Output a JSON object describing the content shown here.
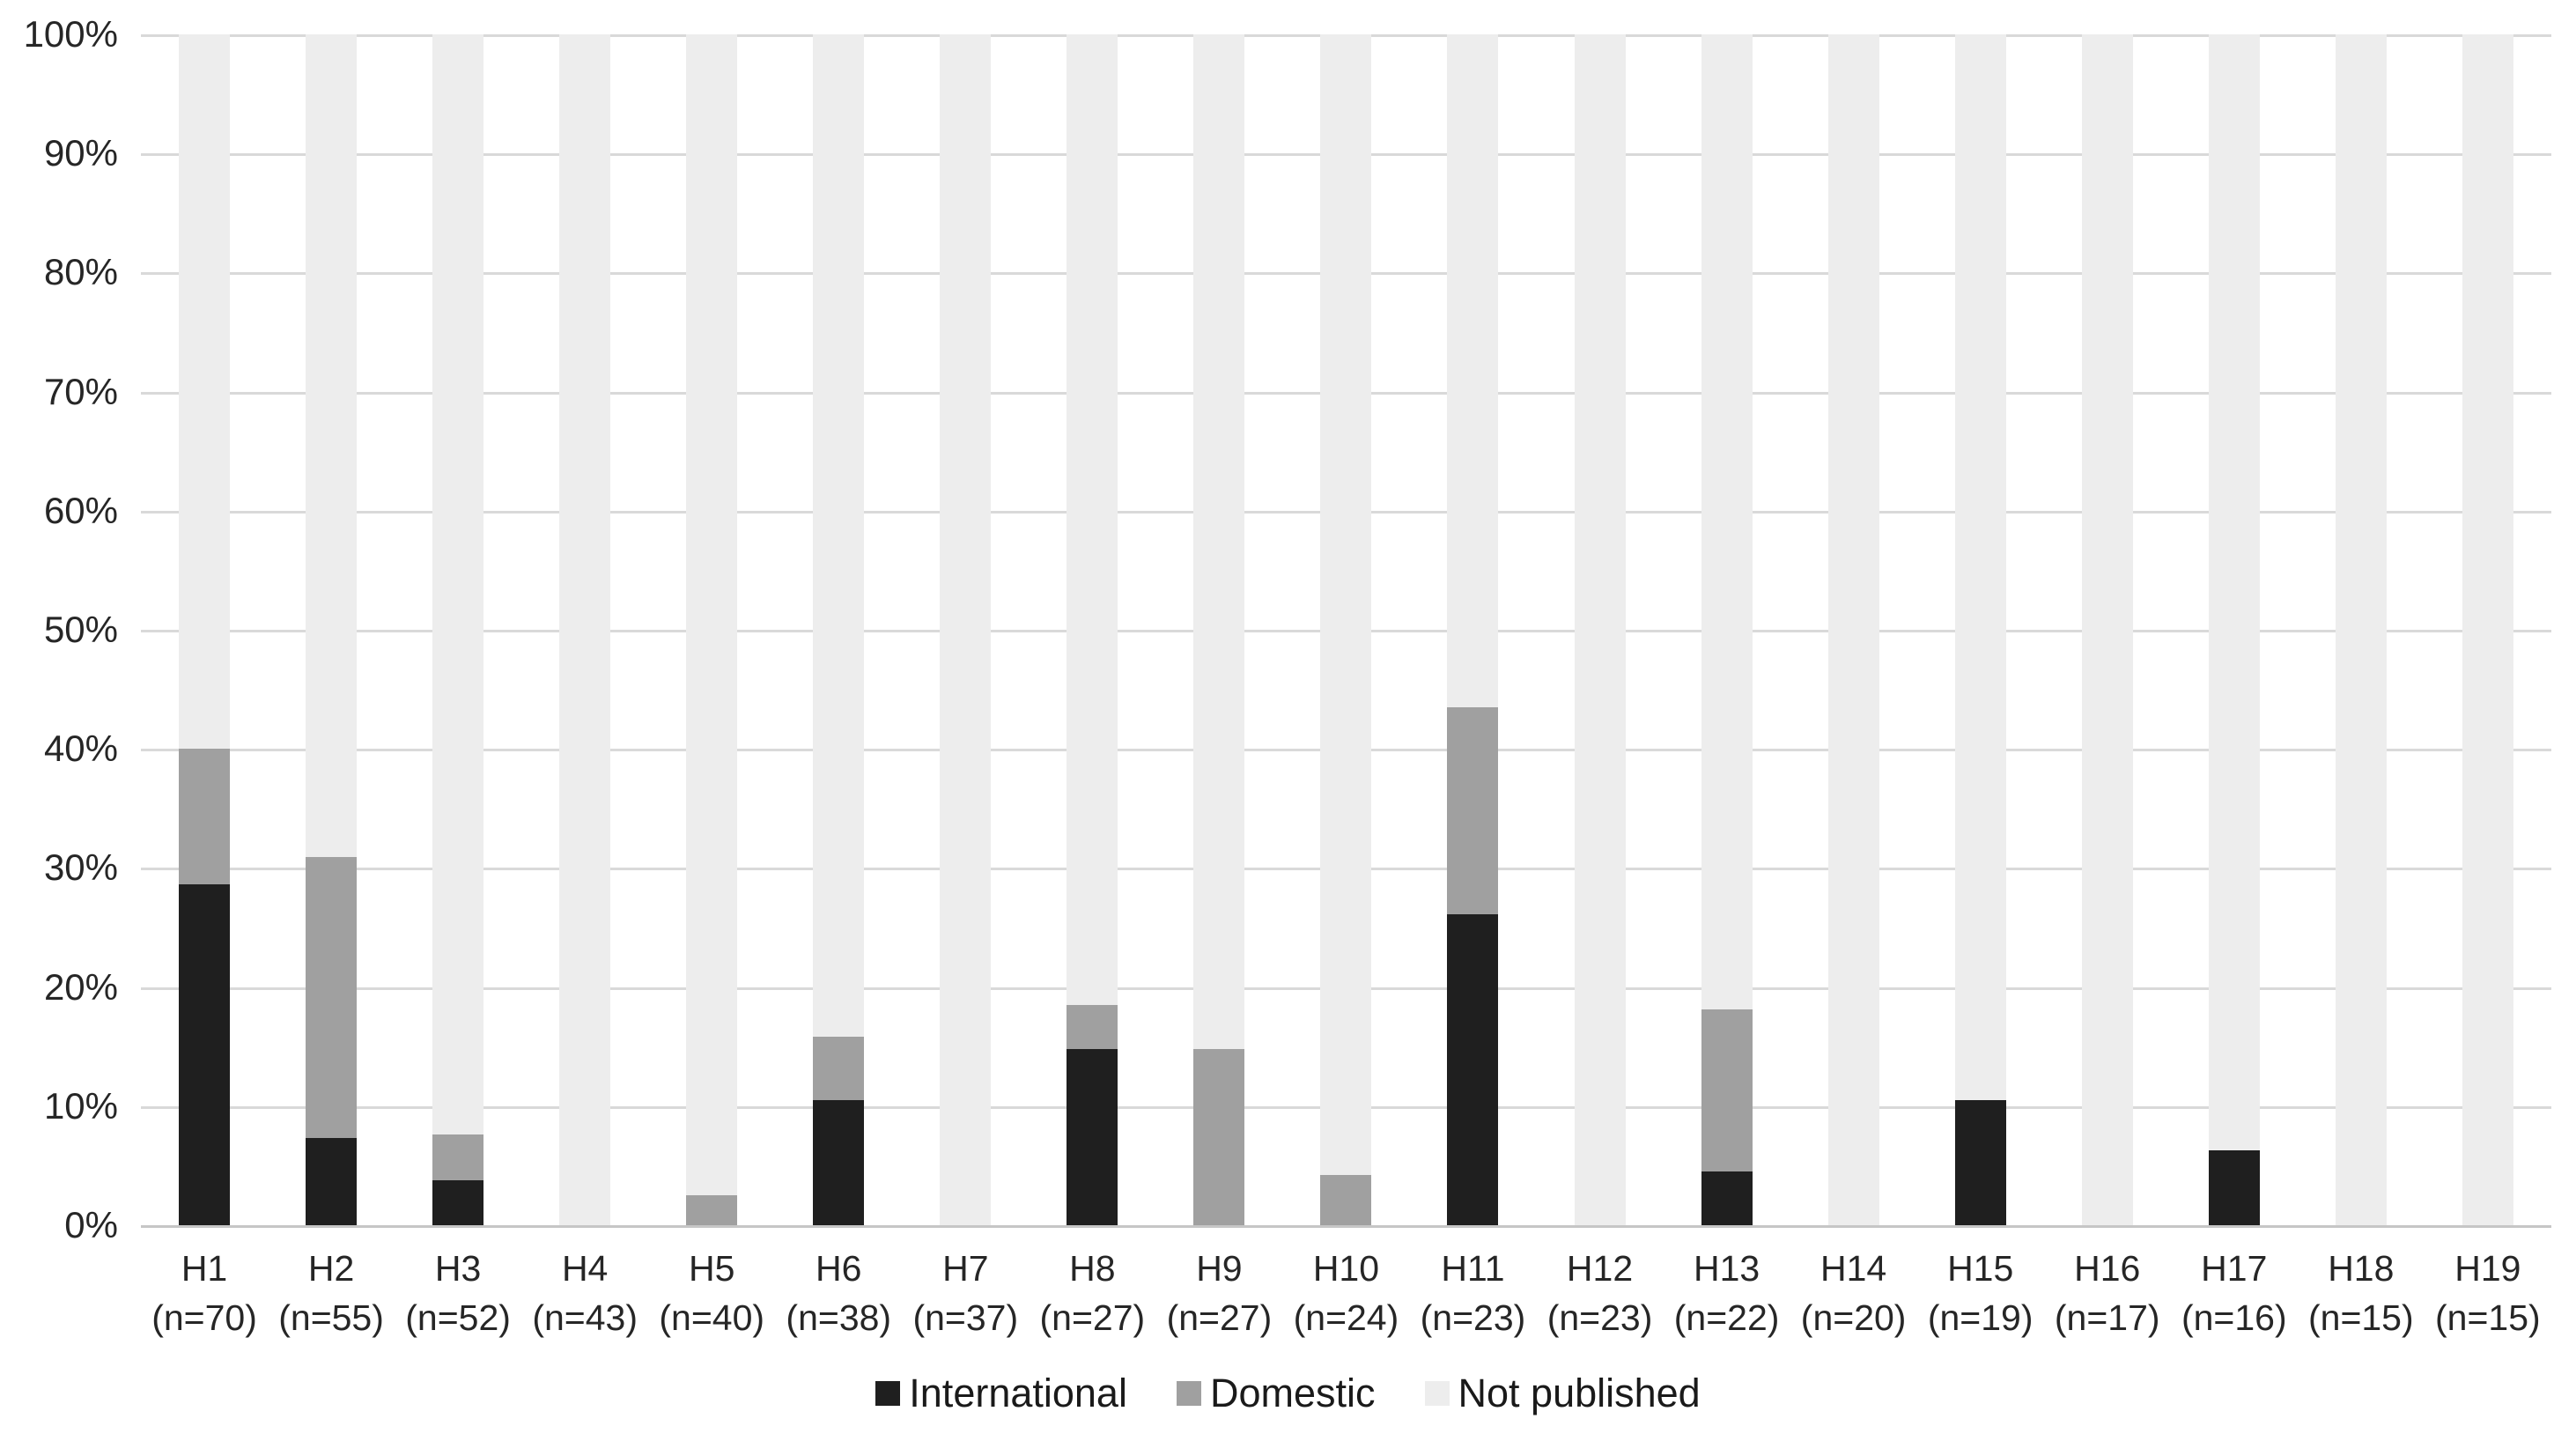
{
  "chart_data": {
    "type": "bar",
    "variant": "stacked-100-percent",
    "title": "",
    "xlabel": "",
    "ylabel": "",
    "ylim": [
      0,
      100
    ],
    "grid": true,
    "legend_position": "bottom",
    "y_ticks": [
      "0%",
      "10%",
      "20%",
      "30%",
      "40%",
      "50%",
      "60%",
      "70%",
      "80%",
      "90%",
      "100%"
    ],
    "categories": [
      "H1",
      "H2",
      "H3",
      "H4",
      "H5",
      "H6",
      "H7",
      "H8",
      "H9",
      "H10",
      "H11",
      "H12",
      "H13",
      "H14",
      "H15",
      "H16",
      "H17",
      "H18",
      "H19"
    ],
    "n_labels": [
      "(n=70)",
      "(n=55)",
      "(n=52)",
      "(n=43)",
      "(n=40)",
      "(n=38)",
      "(n=37)",
      "(n=27)",
      "(n=27)",
      "(n=24)",
      "(n=23)",
      "(n=23)",
      "(n=22)",
      "(n=20)",
      "(n=19)",
      "(n=17)",
      "(n=16)",
      "(n=15)",
      "(n=15)"
    ],
    "series": [
      {
        "name": "International",
        "color": "#1f1f1f",
        "values": [
          28.6,
          7.3,
          3.8,
          0,
          0,
          10.5,
          0,
          14.8,
          0,
          0,
          26.1,
          0,
          4.5,
          0,
          10.5,
          0,
          6.3,
          0,
          0
        ]
      },
      {
        "name": "Domestic",
        "color": "#a0a0a0",
        "values": [
          11.4,
          23.6,
          3.8,
          0,
          2.5,
          5.3,
          0,
          3.7,
          14.8,
          4.2,
          17.4,
          0,
          13.6,
          0,
          0,
          0,
          0,
          0,
          0
        ]
      },
      {
        "name": "Not published",
        "color": "#ededed",
        "values": [
          60.0,
          69.1,
          92.4,
          100,
          97.5,
          84.2,
          100,
          81.5,
          85.2,
          95.8,
          56.5,
          100,
          81.9,
          100,
          89.5,
          100,
          93.7,
          100,
          100
        ]
      }
    ]
  },
  "style_colors": {
    "gridline": "#d9d9d9",
    "axis_line": "#c6c6c6",
    "tick_text": "#262626",
    "legend_text": "#1a1a1a",
    "background": "#ffffff"
  }
}
